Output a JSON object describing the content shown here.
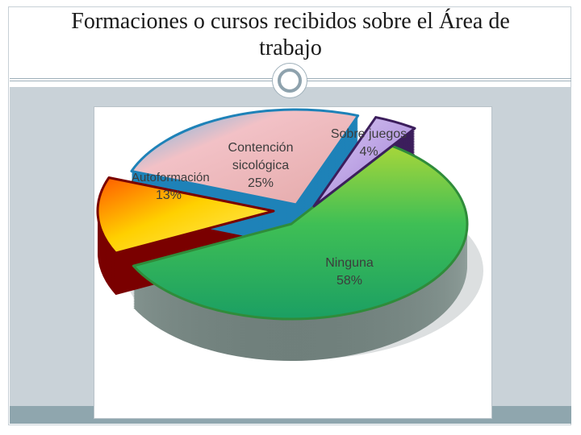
{
  "slide": {
    "title_line1": "Formaciones o cursos recibidos sobre el Área de",
    "title_line2": "trabajo"
  },
  "chart_data": {
    "type": "pie",
    "title": "",
    "categories": [
      "Ninguna",
      "Autoformación",
      "Contención sicológica",
      "Sobre juegos"
    ],
    "values": [
      58,
      13,
      25,
      4
    ],
    "value_labels": [
      "58%",
      "13%",
      "25%",
      "4%"
    ],
    "label_lines": [
      [
        "Ninguna",
        "58%"
      ],
      [
        "Autoformación",
        "13%"
      ],
      [
        "Contención",
        "sicológica",
        "25%"
      ],
      [
        "Sobre juegos",
        "4%"
      ]
    ],
    "colors": [
      "#34b24c",
      "#f5d000",
      "#e7b8b8",
      "#b9a3e0"
    ],
    "legend": "none",
    "style": "3d-exploded"
  }
}
